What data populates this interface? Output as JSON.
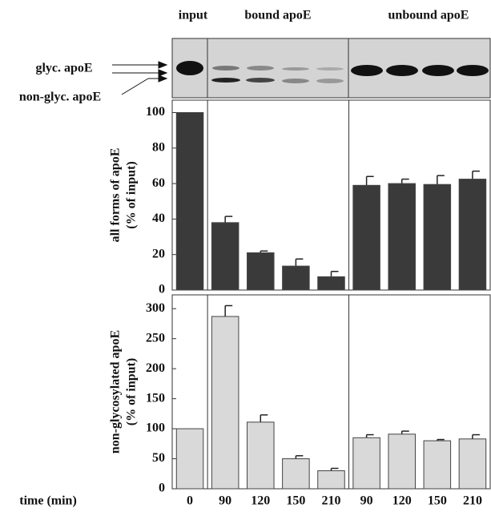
{
  "figure": {
    "group_labels": [
      "input",
      "bound apoE",
      "unbound apoE"
    ],
    "blot_labels": [
      "glyc. apoE",
      "non-glyc. apoE"
    ],
    "x_label": "time (min)"
  },
  "chart_data": [
    {
      "type": "bar",
      "y_label": [
        "all forms of apoE",
        "(% of input)"
      ],
      "color": "#3a3a3a",
      "values": [
        100,
        38,
        21,
        13.5,
        7.5,
        59,
        60,
        59.5,
        62.5
      ],
      "errors": [
        0,
        3.5,
        1,
        4,
        3,
        5,
        2.5,
        5,
        4.5
      ],
      "ylim": [
        0,
        107
      ],
      "yticks": [
        0,
        20,
        40,
        60,
        80,
        100
      ]
    },
    {
      "type": "bar",
      "y_label": [
        "non-glycosylated apoE",
        "(% of input)"
      ],
      "color": "#d9d9d9",
      "categories": [
        "0",
        "90",
        "120",
        "150",
        "210",
        "90",
        "120",
        "150",
        "210"
      ],
      "values": [
        100,
        287,
        111,
        50,
        30,
        85,
        91,
        80,
        83
      ],
      "errors": [
        0,
        18,
        12,
        5,
        4,
        5,
        5,
        2,
        7
      ],
      "ylim": [
        0,
        323
      ],
      "yticks": [
        0,
        50,
        100,
        150,
        200,
        250,
        300
      ]
    }
  ]
}
